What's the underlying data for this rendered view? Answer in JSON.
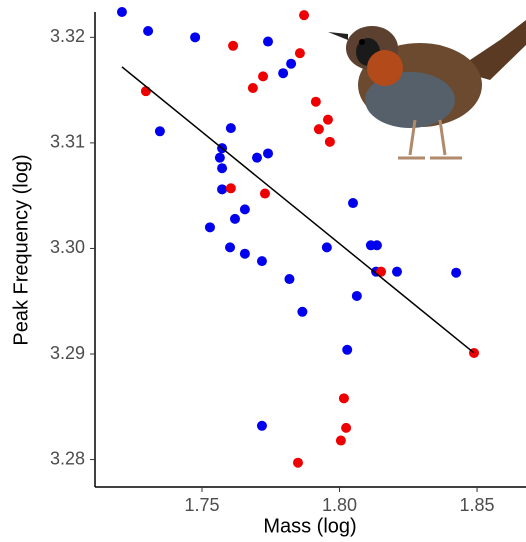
{
  "chart_data": {
    "type": "scatter",
    "x_label": "Mass (log)",
    "y_label": "Peak Frequency (log)",
    "xlim": [
      1.7111,
      1.8678
    ],
    "ylim": [
      3.2774,
      3.3224
    ],
    "xticks": [
      1.75,
      {
        "value": 1.8,
        "label": "1.80"
      },
      1.85
    ],
    "yticks": [
      3.28,
      3.29,
      {
        "value": 3.3,
        "label": "3.30"
      },
      3.31,
      3.32
    ],
    "series": [
      {
        "color": "#0000ee",
        "x": [
          1.7209,
          1.7304,
          1.7475,
          1.7347,
          1.774,
          1.7824,
          1.7795,
          1.7605,
          1.7573,
          1.7565,
          1.7573,
          1.774,
          1.77,
          1.7573,
          1.7656,
          1.762,
          1.7529,
          1.7602,
          1.7656,
          1.7718,
          1.8049,
          1.7954,
          1.8114,
          1.8136,
          1.8133,
          1.8209,
          1.8424,
          1.7818,
          1.8063,
          1.7865,
          1.8028,
          1.7718
        ],
        "values": [
          3.3224,
          3.3206,
          3.32,
          3.3111,
          3.3196,
          3.3175,
          3.3166,
          3.3114,
          3.3095,
          3.3086,
          3.3076,
          3.309,
          3.3086,
          3.3056,
          3.3037,
          3.3028,
          3.302,
          3.3001,
          3.2995,
          3.2988,
          3.3043,
          3.3001,
          3.3003,
          3.3003,
          3.2978,
          3.2978,
          3.2977,
          3.2971,
          3.2955,
          3.294,
          3.2904,
          3.2832
        ]
      },
      {
        "color": "#ee0000",
        "x": [
          1.7871,
          1.7613,
          1.7856,
          1.7722,
          1.7685,
          1.7296,
          1.7914,
          1.7958,
          1.7925,
          1.7965,
          1.7605,
          1.7729,
          1.8151,
          1.8489,
          1.8016,
          1.8024,
          1.8005,
          1.7849
        ],
        "values": [
          3.3221,
          3.3192,
          3.3185,
          3.3163,
          3.3152,
          3.3149,
          3.3139,
          3.3122,
          3.3113,
          3.3101,
          3.3057,
          3.3052,
          3.2978,
          3.2901,
          3.2858,
          3.283,
          3.2818,
          3.2797
        ]
      }
    ],
    "trendline": {
      "color": "#000000",
      "x": [
        1.7209,
        1.8489
      ],
      "values": [
        3.3172,
        3.2901
      ]
    }
  }
}
